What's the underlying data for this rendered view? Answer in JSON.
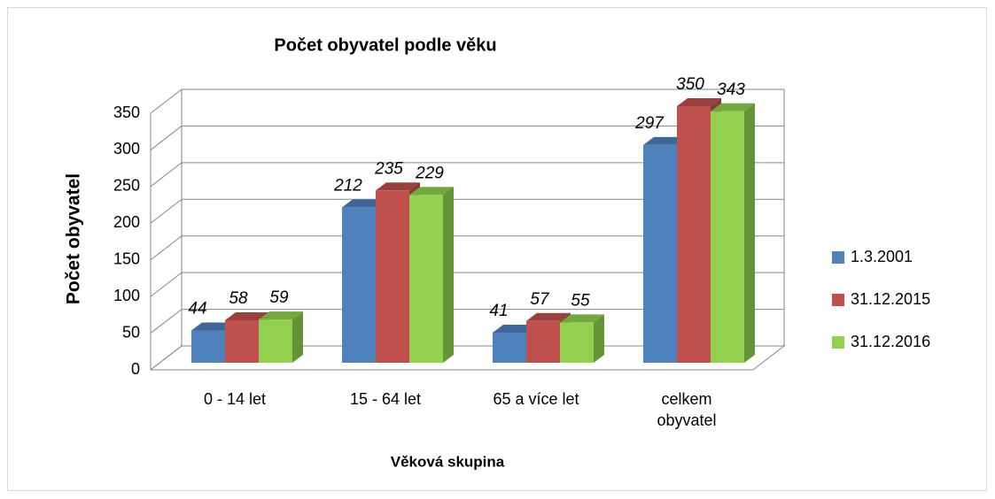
{
  "chart_data": {
    "type": "bar3d",
    "title": "Počet obyvatel podle věku",
    "x_label": "Věková skupina",
    "y_label": "Počet obyvatel",
    "categories": [
      "0 - 14 let",
      "15 - 64 let",
      "65 a více let",
      "celkem obyvatel"
    ],
    "series": [
      {
        "name": "1.3.2001",
        "color": "#4f81bd",
        "values": [
          44,
          212,
          41,
          297
        ]
      },
      {
        "name": "31.12.2015",
        "color": "#c0504d",
        "values": [
          58,
          235,
          57,
          350
        ]
      },
      {
        "name": "31.12.2016",
        "color": "#92d050",
        "values": [
          59,
          229,
          55,
          343
        ]
      }
    ],
    "ylim": [
      0,
      350
    ],
    "yticks": [
      0,
      50,
      100,
      150,
      200,
      250,
      300,
      350
    ],
    "grid": true,
    "legend": "right"
  }
}
